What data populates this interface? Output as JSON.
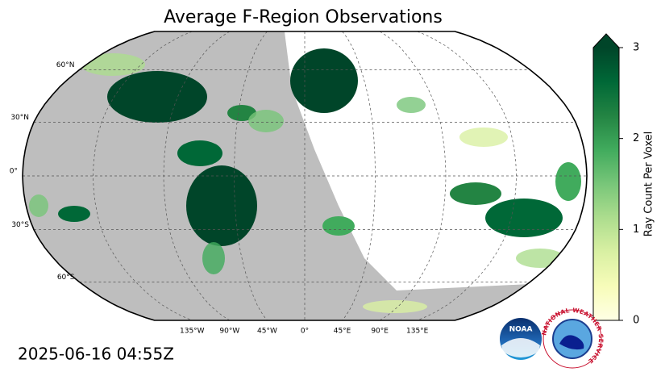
{
  "title": "Average F-Region Observations",
  "timestamp": "2025-06-16 04:55Z",
  "map": {
    "projection": "robinson",
    "lat_labels": [
      {
        "value": 60,
        "label": "60°N"
      },
      {
        "value": 30,
        "label": "30°N"
      },
      {
        "value": 0,
        "label": "0°"
      },
      {
        "value": -30,
        "label": "30°S"
      },
      {
        "value": -60,
        "label": "60°S"
      }
    ],
    "lon_labels": [
      {
        "value": -135,
        "label": "135°W"
      },
      {
        "value": -90,
        "label": "90°W"
      },
      {
        "value": -45,
        "label": "45°W"
      },
      {
        "value": 0,
        "label": "0°"
      },
      {
        "value": 45,
        "label": "45°E"
      },
      {
        "value": 90,
        "label": "90°E"
      },
      {
        "value": 135,
        "label": "135°E"
      }
    ]
  },
  "colorbar": {
    "label": "Ray Count Per Voxel",
    "lim": [
      0,
      3
    ],
    "ticks": [
      0,
      1,
      2,
      3
    ],
    "extend": "max",
    "colormap": [
      "#ffffe5",
      "#f7fcb9",
      "#d9f0a3",
      "#addd8e",
      "#78c679",
      "#41ab5d",
      "#238443",
      "#006837",
      "#004529"
    ]
  },
  "logos": {
    "noaa": "NOAA",
    "nws": "NATIONAL WEATHER SERVICE"
  }
}
